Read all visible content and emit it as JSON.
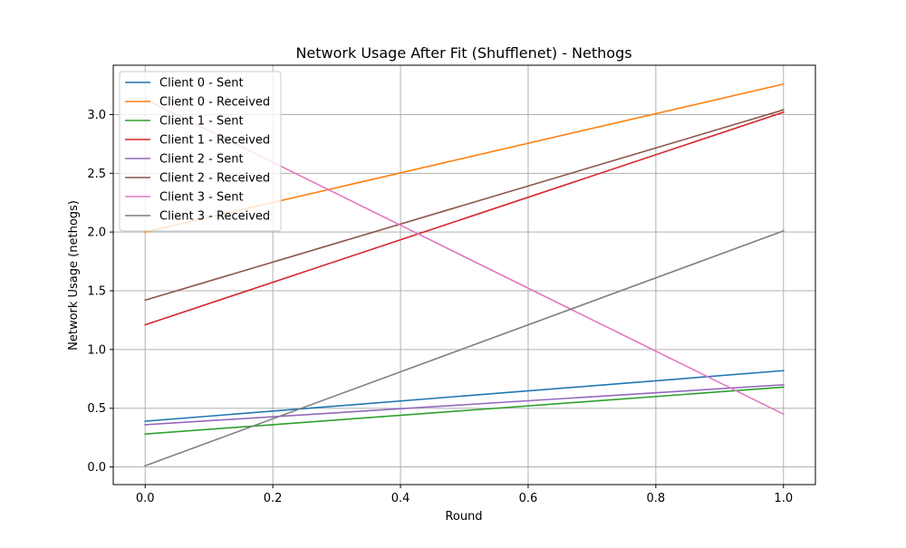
{
  "chart_data": {
    "type": "line",
    "title": "Network Usage After Fit (Shufflenet) - Nethogs",
    "xlabel": "Round",
    "ylabel": "Network Usage (nethogs)",
    "x": [
      0,
      1
    ],
    "xlim": [
      -0.05,
      1.05
    ],
    "ylim": [
      -0.15,
      3.42
    ],
    "xticks": [
      0.0,
      0.2,
      0.4,
      0.6,
      0.8,
      1.0
    ],
    "xtick_labels": [
      "0.0",
      "0.2",
      "0.4",
      "0.6",
      "0.8",
      "1.0"
    ],
    "yticks": [
      0.0,
      0.5,
      1.0,
      1.5,
      2.0,
      2.5,
      3.0
    ],
    "ytick_labels": [
      "0.0",
      "0.5",
      "1.0",
      "1.5",
      "2.0",
      "2.5",
      "3.0"
    ],
    "grid": true,
    "legend_position": "top-left",
    "series": [
      {
        "name": "Client 0 - Sent",
        "values": [
          0.39,
          0.82
        ],
        "color": "#1f77b4"
      },
      {
        "name": "Client 0 - Received",
        "values": [
          2.0,
          3.26
        ],
        "color": "#ff7f0e"
      },
      {
        "name": "Client 1 - Sent",
        "values": [
          0.28,
          0.68
        ],
        "color": "#2ca02c"
      },
      {
        "name": "Client 1 - Received",
        "values": [
          1.21,
          3.02
        ],
        "color": "#d62728"
      },
      {
        "name": "Client 2 - Sent",
        "values": [
          0.36,
          0.7
        ],
        "color": "#9467bd"
      },
      {
        "name": "Client 2 - Received",
        "values": [
          1.42,
          3.04
        ],
        "color": "#8c564b"
      },
      {
        "name": "Client 3 - Sent",
        "values": [
          3.13,
          0.45
        ],
        "color": "#e377c2"
      },
      {
        "name": "Client 3 - Received",
        "values": [
          0.01,
          2.01
        ],
        "color": "#7f7f7f"
      }
    ]
  }
}
